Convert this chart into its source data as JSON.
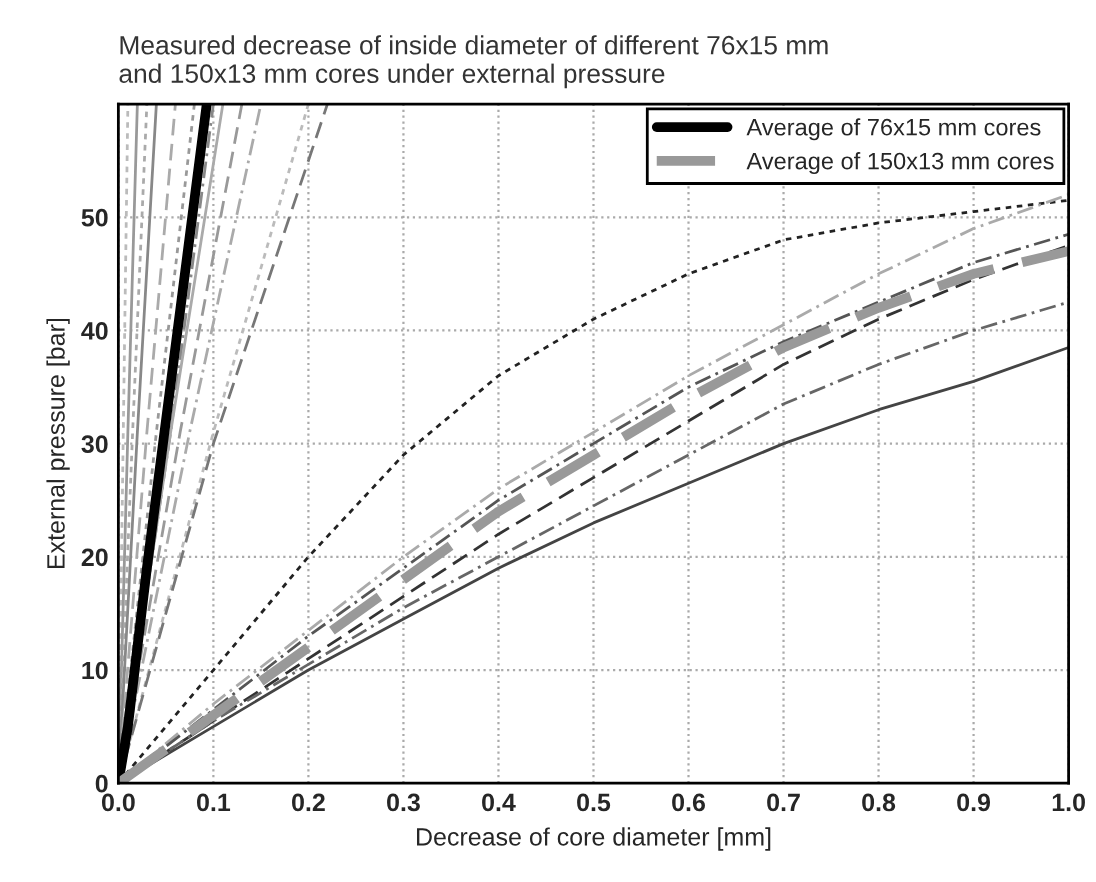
{
  "chart_data": {
    "type": "line",
    "title": "Measured decrease of inside diameter of different 76x15 mm\nand 150x13 mm cores under external pressure",
    "xlabel": "Decrease of core diameter [mm]",
    "ylabel": "External pressure [bar]",
    "xlim": [
      0,
      1.0
    ],
    "ylim": [
      0,
      60
    ],
    "xticks": [
      {
        "value": 0,
        "label": "0.0"
      },
      0.1,
      0.2,
      0.3,
      0.4,
      0.5,
      0.6,
      0.7,
      0.8,
      0.9,
      {
        "value": 1.0,
        "label": "1.0"
      }
    ],
    "yticks": [
      0,
      10,
      20,
      30,
      40,
      50
    ],
    "grid": true,
    "legend": "top right",
    "marker": "none",
    "series": [
      {
        "color": "#bbbbbb",
        "line_style": "dotted",
        "x": [
          0,
          0.005,
          0.01
        ],
        "values": [
          0,
          30,
          60
        ]
      },
      {
        "color": "#999999",
        "line_style": "solid",
        "x": [
          0,
          0.01,
          0.02
        ],
        "values": [
          0,
          31,
          60
        ]
      },
      {
        "color": "#aaaaaa",
        "line_style": "dotted",
        "x": [
          0,
          0.015,
          0.03
        ],
        "values": [
          0,
          31,
          60
        ]
      },
      {
        "color": "#888888",
        "line_style": "solid",
        "x": [
          0,
          0.02,
          0.04
        ],
        "values": [
          0,
          31,
          60
        ]
      },
      {
        "color": "#aaaaaa",
        "line_style": "dashed",
        "x": [
          0,
          0.03,
          0.06
        ],
        "values": [
          0,
          31,
          60
        ]
      },
      {
        "color": "#999999",
        "line_style": "dotted",
        "x": [
          0,
          0.04,
          0.08
        ],
        "values": [
          0,
          31,
          60
        ]
      },
      {
        "color": "#888888",
        "line_style": "dashdot",
        "x": [
          0,
          0.055,
          0.1
        ],
        "values": [
          0,
          31,
          60
        ]
      },
      {
        "color": "#aaaaaa",
        "line_style": "solid",
        "x": [
          0,
          0.055,
          0.11
        ],
        "values": [
          0,
          31,
          60
        ]
      },
      {
        "color": "#999999",
        "line_style": "dashed",
        "x": [
          0,
          0.065,
          0.13
        ],
        "values": [
          0,
          31,
          60
        ]
      },
      {
        "color": "#aaaaaa",
        "line_style": "dashdot",
        "x": [
          0,
          0.075,
          0.15
        ],
        "values": [
          0,
          31,
          60
        ]
      },
      {
        "color": "#bbbbbb",
        "line_style": "dotted",
        "x": [
          0,
          0.1,
          0.2
        ],
        "values": [
          0,
          31,
          60
        ]
      },
      {
        "color": "#777777",
        "line_style": "dashed",
        "x": [
          0,
          0.1,
          0.22
        ],
        "values": [
          0,
          30,
          60
        ]
      },
      {
        "color": "#222222",
        "line_style": "dotted",
        "x": [
          0,
          0.1,
          0.2,
          0.3,
          0.4,
          0.5,
          0.6,
          0.7,
          0.8,
          0.9,
          1.0
        ],
        "values": [
          0,
          10,
          20,
          29,
          36,
          41,
          45,
          48,
          49.5,
          50.5,
          51.5
        ]
      },
      {
        "color": "#aaaaaa",
        "line_style": "dashdot",
        "x": [
          0,
          0.1,
          0.2,
          0.3,
          0.4,
          0.5,
          0.6,
          0.7,
          0.8,
          0.9,
          1.0
        ],
        "values": [
          0,
          7,
          13.5,
          20,
          26,
          31,
          36,
          40.5,
          45,
          49,
          52
        ]
      },
      {
        "color": "#555555",
        "line_style": "dashdot",
        "x": [
          0,
          0.1,
          0.2,
          0.3,
          0.4,
          0.5,
          0.6,
          0.7,
          0.8,
          0.9,
          1.0
        ],
        "values": [
          0,
          6.5,
          13,
          19,
          25,
          30,
          35,
          39,
          42.5,
          46,
          48.5
        ]
      },
      {
        "color": "#333333",
        "line_style": "dashed",
        "x": [
          0,
          0.1,
          0.2,
          0.3,
          0.4,
          0.5,
          0.6,
          0.7,
          0.8,
          0.9,
          1.0
        ],
        "values": [
          0,
          5.5,
          11,
          16.5,
          22,
          27,
          32,
          37,
          41,
          44.5,
          47.5
        ]
      },
      {
        "color": "#666666",
        "line_style": "dashdot",
        "x": [
          0,
          0.1,
          0.2,
          0.3,
          0.4,
          0.5,
          0.6,
          0.7,
          0.8,
          0.9,
          1.0
        ],
        "values": [
          0,
          5.5,
          10.5,
          15.5,
          20,
          24.5,
          29,
          33.5,
          37,
          40,
          42.5
        ]
      },
      {
        "color": "#444444",
        "line_style": "solid",
        "x": [
          0,
          0.1,
          0.2,
          0.3,
          0.4,
          0.5,
          0.6,
          0.7,
          0.8,
          0.9,
          1.0
        ],
        "values": [
          0,
          5,
          10,
          14.5,
          19,
          23,
          26.5,
          30,
          33,
          35.5,
          38.5
        ]
      },
      {
        "name": "Average of 76x15 mm cores",
        "color": "#000000",
        "line_style": "solid",
        "x": [
          0,
          0.01,
          0.03,
          0.05,
          0.07,
          0.093
        ],
        "values": [
          0,
          5,
          19,
          32,
          45,
          60
        ]
      },
      {
        "name": "Average of 150x13 mm cores",
        "color": "#999999",
        "line_style": "dashed",
        "x": [
          0,
          0.1,
          0.2,
          0.3,
          0.4,
          0.5,
          0.6,
          0.7,
          0.8,
          0.9,
          1.0
        ],
        "values": [
          0,
          6,
          12,
          18,
          24,
          29,
          34,
          38.5,
          42,
          45,
          47
        ]
      }
    ]
  }
}
